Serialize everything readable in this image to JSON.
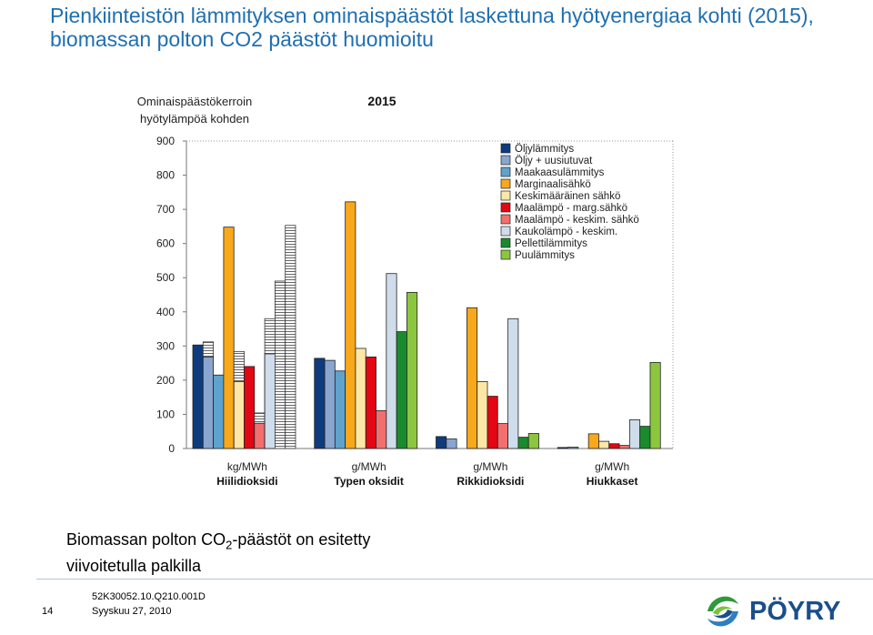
{
  "title": "Pienkiinteistön lämmityksen ominaispäästöt laskettuna hyötyenergiaa kohti (2015), biomassan polton CO2 päästöt huomioitu",
  "note": {
    "prefix": "Biomassan polton CO",
    "subscript": "2",
    "suffix": "-päästöt on esitetty",
    "line2": "viivoitetulla palkilla"
  },
  "footer": {
    "page_number": "14",
    "doc_code": "52K30052.10.Q210.001D",
    "date": "Syyskuu 27, 2010",
    "logo_text": "PÖYRY"
  },
  "colors": {
    "title": "#1f6fb0",
    "logo_text": "#1b4f8a"
  },
  "chart_data": {
    "type": "bar",
    "title": "2015",
    "ylabel_lines": [
      "Ominaispäästökerroin",
      "hyötylämpöä kohden"
    ],
    "ylim": [
      0,
      900
    ],
    "yticks": [
      0,
      100,
      200,
      300,
      400,
      500,
      600,
      700,
      800,
      900
    ],
    "gridlines": false,
    "legend_position": "top-right",
    "categories": [
      {
        "unit": "kg/MWh",
        "name": "Hiilidioksidi"
      },
      {
        "unit": "g/MWh",
        "name": "Typen oksidit"
      },
      {
        "unit": "g/MWh",
        "name": "Rikkidioksidi"
      },
      {
        "unit": "g/MWh",
        "name": "Hiukkaset"
      }
    ],
    "series": [
      {
        "name": "Öljylämmitys",
        "color": "#0e3b7d",
        "values": [
          303,
          264,
          35,
          3
        ]
      },
      {
        "name": "Öljy + uusiutuvat",
        "color": "#8aa5cf",
        "values": [
          268,
          258,
          28,
          4
        ],
        "biomass_values": [
          312,
          null,
          null,
          null
        ]
      },
      {
        "name": "Maakaasulämmitys",
        "color": "#5fa3cc",
        "values": [
          215,
          227,
          null,
          null
        ]
      },
      {
        "name": "Marginaalisähkö",
        "color": "#f7a81b",
        "values": [
          648,
          722,
          412,
          43
        ]
      },
      {
        "name": "Keskimääräinen sähkö",
        "color": "#fde7a6",
        "values": [
          196,
          293,
          196,
          21
        ],
        "biomass_values": [
          284,
          null,
          null,
          null
        ]
      },
      {
        "name": "Maalämpö - marg.sähkö",
        "color": "#e30613",
        "values": [
          240,
          268,
          153,
          14
        ]
      },
      {
        "name": "Maalämpö - keskim. sähkö",
        "color": "#f26f6f",
        "values": [
          74,
          111,
          73,
          9
        ],
        "biomass_values": [
          104,
          null,
          null,
          null
        ]
      },
      {
        "name": "Kaukolämpö - keskim.",
        "color": "#cfdcec",
        "values": [
          277,
          512,
          380,
          84
        ],
        "biomass_values": [
          380,
          null,
          null,
          null
        ]
      },
      {
        "name": "Pellettilämmitys",
        "color": "#1a8a2e",
        "values": [
          0,
          342,
          33,
          65
        ],
        "biomass_values": [
          490,
          null,
          null,
          null
        ]
      },
      {
        "name": "Puulämmitys",
        "color": "#8cc63f",
        "values": [
          0,
          457,
          44,
          252
        ],
        "biomass_values": [
          653,
          null,
          null,
          null
        ]
      }
    ]
  }
}
